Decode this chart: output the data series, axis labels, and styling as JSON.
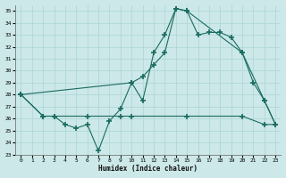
{
  "title": "",
  "xlabel": "Humidex (Indice chaleur)",
  "ylabel": "",
  "background_color": "#cce8e8",
  "grid_color": "#b0d8d8",
  "line_color": "#1a6b60",
  "xlim": [
    -0.5,
    23.5
  ],
  "ylim": [
    23,
    35.5
  ],
  "yticks": [
    23,
    24,
    25,
    26,
    27,
    28,
    29,
    30,
    31,
    32,
    33,
    34,
    35
  ],
  "xticks": [
    0,
    1,
    2,
    3,
    4,
    5,
    6,
    7,
    8,
    9,
    10,
    11,
    12,
    13,
    14,
    15,
    16,
    17,
    18,
    19,
    20,
    21,
    22,
    23
  ],
  "line1_x": [
    0,
    2,
    3,
    4,
    5,
    6,
    7,
    8,
    9,
    10,
    11,
    12,
    13,
    14,
    15,
    20,
    22,
    23
  ],
  "line1_y": [
    28,
    26.2,
    26.2,
    25.5,
    25.2,
    25.5,
    23.3,
    25.8,
    26.8,
    29.0,
    27.5,
    31.5,
    33.0,
    35.2,
    35.0,
    31.5,
    27.5,
    25.5
  ],
  "line2_x": [
    0,
    2,
    3,
    6,
    9,
    10,
    15,
    20,
    22,
    23
  ],
  "line2_y": [
    28,
    26.2,
    26.2,
    26.2,
    26.2,
    26.2,
    26.2,
    26.2,
    25.5,
    25.5
  ],
  "line3_x": [
    0,
    10,
    11,
    12,
    13,
    14,
    15,
    16,
    17,
    18,
    19,
    20,
    21,
    22,
    23
  ],
  "line3_y": [
    28,
    29.0,
    29.5,
    30.5,
    31.5,
    35.2,
    35.0,
    33.0,
    33.2,
    33.2,
    32.8,
    31.5,
    29.0,
    27.5,
    25.5
  ]
}
